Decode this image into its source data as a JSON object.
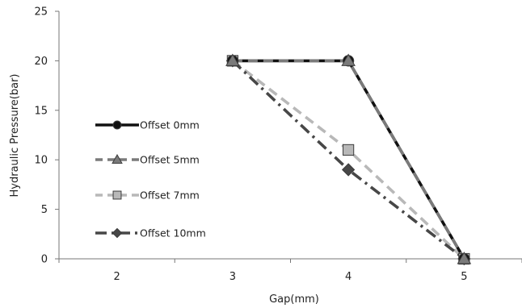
{
  "chart_data": {
    "type": "line",
    "title": "",
    "xlabel": "Gap(mm)",
    "ylabel": "Hydraulic Pressure(bar)",
    "x_categories": [
      2,
      3,
      4,
      5
    ],
    "ylim": [
      0,
      25
    ],
    "yticks": [
      0,
      5,
      10,
      15,
      20,
      25
    ],
    "grid": false,
    "legend_position": "left",
    "series": [
      {
        "name": "Offset 0mm",
        "x": [
          3,
          4,
          5
        ],
        "y": [
          20,
          20,
          0
        ],
        "color": "#111111",
        "dash": "solid",
        "marker": "circle"
      },
      {
        "name": "Offset 5mm",
        "x": [
          3,
          4,
          5
        ],
        "y": [
          20,
          20,
          0
        ],
        "color": "#7a7a7a",
        "dash": "dash",
        "marker": "triangle"
      },
      {
        "name": "Offset 7mm",
        "x": [
          3,
          4,
          5
        ],
        "y": [
          20,
          11,
          0
        ],
        "color": "#b8b8b8",
        "dash": "dash",
        "marker": "square"
      },
      {
        "name": "Offset 10mm",
        "x": [
          3,
          4,
          5
        ],
        "y": [
          20,
          9,
          0
        ],
        "color": "#474747",
        "dash": "dashdot",
        "marker": "diamond"
      }
    ]
  }
}
